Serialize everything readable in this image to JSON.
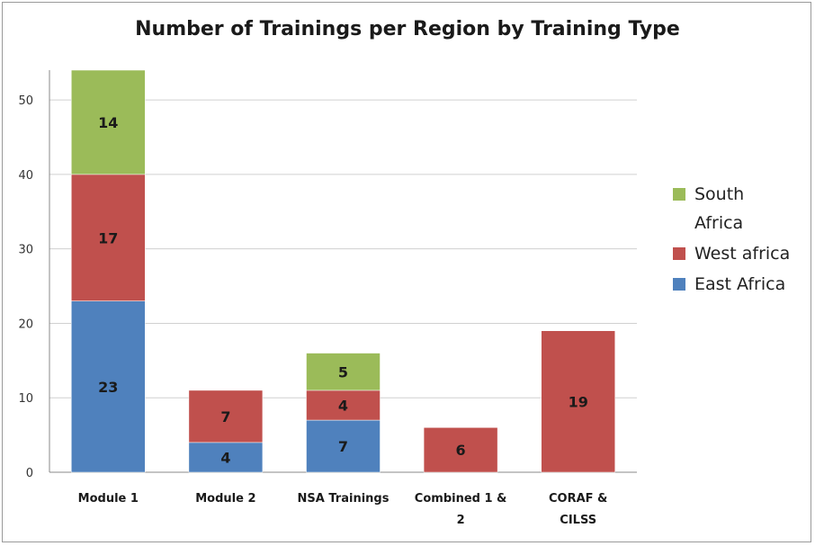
{
  "chart_data": {
    "type": "bar",
    "stacked": true,
    "title": "Number of Trainings per Region by Training Type",
    "xlabel": "",
    "ylabel": "",
    "ylim": [
      0,
      54
    ],
    "yticks": [
      0,
      10,
      20,
      30,
      40,
      50
    ],
    "grid": true,
    "legend_position": "right",
    "categories": [
      [
        "Module 1"
      ],
      [
        "Module 2"
      ],
      [
        "NSA Trainings"
      ],
      [
        "Combined 1 &",
        "2"
      ],
      [
        "CORAF &",
        "CILSS"
      ]
    ],
    "series": [
      {
        "name": "East Africa",
        "color": "#4f81bd",
        "values": [
          23,
          4,
          7,
          null,
          null
        ]
      },
      {
        "name": "West africa",
        "color": "#c0504d",
        "values": [
          17,
          7,
          4,
          6,
          19
        ]
      },
      {
        "name": "South Africa",
        "color": "#9bbb59",
        "values": [
          14,
          null,
          5,
          null,
          null
        ]
      }
    ],
    "legend": [
      {
        "lines": [
          "South",
          "Africa"
        ],
        "color": "#9bbb59"
      },
      {
        "lines": [
          "West africa"
        ],
        "color": "#c0504d"
      },
      {
        "lines": [
          "East Africa"
        ],
        "color": "#4f81bd"
      }
    ]
  }
}
